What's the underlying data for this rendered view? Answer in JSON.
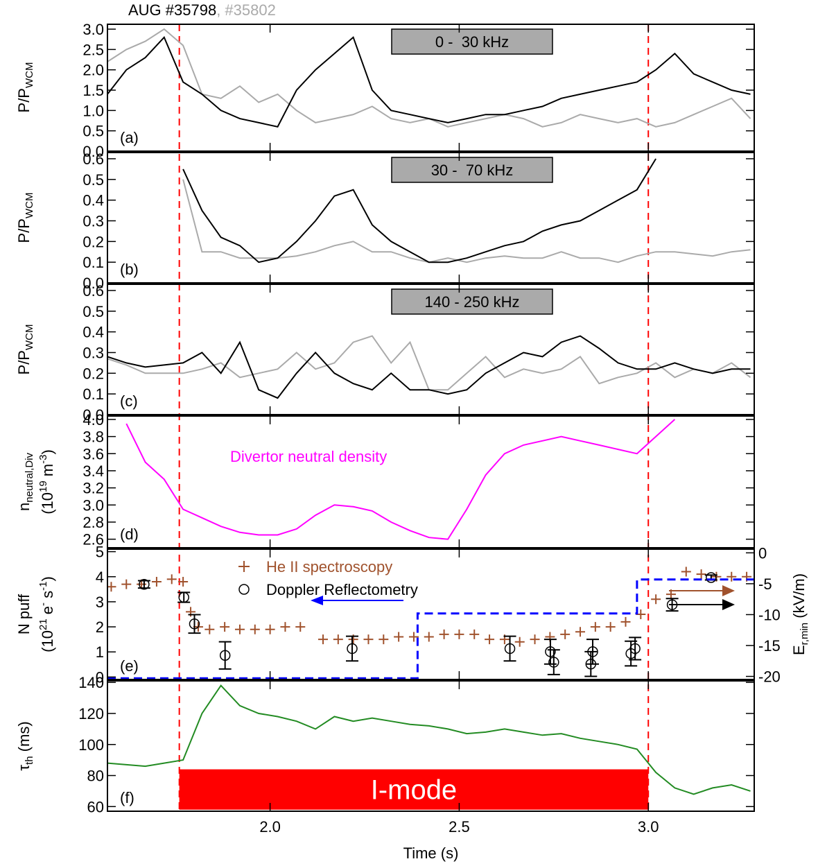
{
  "title": {
    "main": "AUG #35798",
    "second": ", #35802"
  },
  "vlines": {
    "x": [
      1.76,
      3.0
    ],
    "color": "#ff0000"
  },
  "chart_data": [
    {
      "type": "line",
      "panel": "(a)",
      "band": "0 -  30 kHz",
      "ylabel": {
        "main": "P/P",
        "sub": "WCM"
      },
      "xlim": [
        1.57,
        3.28
      ],
      "xticks": [
        {
          "value": 2,
          "label": "2.0"
        },
        2.5,
        {
          "value": 3,
          "label": "3.0"
        }
      ],
      "ylim": [
        0,
        3.12
      ],
      "yticks": [
        {
          "value": 0,
          "label": "0.0"
        },
        0.5,
        {
          "value": 1,
          "label": "1.0"
        },
        1.5,
        {
          "value": 2,
          "label": "2.0"
        },
        2.5,
        {
          "value": 3,
          "label": "3.0"
        }
      ],
      "x": [
        1.57,
        1.62,
        1.67,
        1.72,
        1.77,
        1.82,
        1.87,
        1.92,
        1.97,
        2.02,
        2.07,
        2.12,
        2.17,
        2.22,
        2.27,
        2.32,
        2.37,
        2.42,
        2.47,
        2.52,
        2.57,
        2.62,
        2.67,
        2.72,
        2.77,
        2.82,
        2.87,
        2.92,
        2.97,
        3.02,
        3.07,
        3.12,
        3.17,
        3.22,
        3.27
      ],
      "series": [
        {
          "color": "#aaaaaa",
          "values": [
            2.2,
            2.5,
            2.7,
            3.0,
            2.6,
            1.4,
            1.3,
            1.6,
            1.2,
            1.4,
            1.0,
            0.7,
            0.8,
            0.9,
            1.1,
            0.8,
            0.7,
            0.8,
            0.6,
            0.7,
            0.8,
            0.9,
            0.8,
            0.6,
            0.7,
            0.9,
            0.8,
            0.7,
            0.8,
            0.6,
            0.7,
            0.9,
            1.1,
            1.3,
            0.8
          ]
        },
        {
          "color": "#000000",
          "values": [
            1.4,
            2.0,
            2.3,
            2.8,
            1.7,
            1.4,
            1.0,
            0.8,
            0.7,
            0.6,
            1.5,
            2.0,
            2.4,
            2.8,
            1.5,
            1.0,
            0.9,
            0.8,
            0.7,
            0.8,
            0.9,
            0.9,
            1.0,
            1.1,
            1.3,
            1.4,
            1.5,
            1.6,
            1.7,
            2.0,
            2.4,
            1.9,
            1.7,
            1.5,
            1.4
          ]
        }
      ]
    },
    {
      "type": "line",
      "panel": "(b)",
      "band": "30 -  70 kHz",
      "ylabel": {
        "main": "P/P",
        "sub": "WCM"
      },
      "xlim": [
        1.57,
        3.28
      ],
      "xticks": [
        {
          "value": 2,
          "label": "2.0"
        },
        2.5,
        {
          "value": 3,
          "label": "3.0"
        }
      ],
      "ylim": [
        0,
        0.63
      ],
      "yticks": [
        {
          "value": 0,
          "label": "0.0"
        },
        0.1,
        0.2,
        0.3,
        0.4,
        0.5,
        0.6
      ],
      "x": [
        1.57,
        1.62,
        1.67,
        1.72,
        1.77,
        1.82,
        1.87,
        1.92,
        1.97,
        2.02,
        2.07,
        2.12,
        2.17,
        2.22,
        2.27,
        2.32,
        2.37,
        2.42,
        2.47,
        2.52,
        2.57,
        2.62,
        2.67,
        2.72,
        2.77,
        2.82,
        2.87,
        2.92,
        2.97,
        3.02,
        3.07,
        3.12,
        3.17,
        3.22,
        3.27
      ],
      "series": [
        {
          "color": "#aaaaaa",
          "values": [
            null,
            null,
            null,
            null,
            0.5,
            0.15,
            0.15,
            0.12,
            0.12,
            0.12,
            0.13,
            0.15,
            0.18,
            0.2,
            0.15,
            0.15,
            0.12,
            0.1,
            0.12,
            0.1,
            0.12,
            0.13,
            0.12,
            0.12,
            0.15,
            0.12,
            0.12,
            0.1,
            0.13,
            0.15,
            0.15,
            0.14,
            0.13,
            0.15,
            0.16
          ]
        },
        {
          "color": "#000000",
          "values": [
            null,
            null,
            null,
            null,
            0.55,
            0.35,
            0.22,
            0.18,
            0.1,
            0.12,
            0.2,
            0.3,
            0.42,
            0.45,
            0.28,
            0.2,
            0.15,
            0.1,
            0.1,
            0.12,
            0.15,
            0.18,
            0.2,
            0.25,
            0.28,
            0.3,
            0.35,
            0.4,
            0.45,
            0.6,
            null,
            null,
            null,
            null,
            null
          ]
        }
      ]
    },
    {
      "type": "line",
      "panel": "(c)",
      "band": "140 - 250 kHz",
      "ylabel": {
        "main": "P/P",
        "sub": "WCM"
      },
      "xlim": [
        1.57,
        3.28
      ],
      "xticks": [
        {
          "value": 2,
          "label": "2.0"
        },
        2.5,
        {
          "value": 3,
          "label": "3.0"
        }
      ],
      "ylim": [
        0,
        0.63
      ],
      "yticks": [
        {
          "value": 0,
          "label": "0.0"
        },
        0.1,
        0.2,
        0.3,
        0.4,
        0.5,
        0.6
      ],
      "x": [
        1.57,
        1.62,
        1.67,
        1.72,
        1.77,
        1.82,
        1.87,
        1.92,
        1.97,
        2.02,
        2.07,
        2.12,
        2.17,
        2.22,
        2.27,
        2.32,
        2.37,
        2.42,
        2.47,
        2.52,
        2.57,
        2.62,
        2.67,
        2.72,
        2.77,
        2.82,
        2.87,
        2.92,
        2.97,
        3.02,
        3.07,
        3.12,
        3.17,
        3.22,
        3.27
      ],
      "series": [
        {
          "color": "#aaaaaa",
          "values": [
            0.27,
            0.24,
            0.2,
            0.2,
            0.2,
            0.22,
            0.25,
            0.18,
            0.2,
            0.22,
            0.3,
            0.22,
            0.25,
            0.35,
            0.38,
            0.25,
            0.35,
            0.12,
            0.12,
            0.2,
            0.28,
            0.18,
            0.22,
            0.2,
            0.22,
            0.28,
            0.15,
            0.18,
            0.2,
            0.25,
            0.18,
            0.22,
            0.2,
            0.25,
            0.18
          ]
        },
        {
          "color": "#000000",
          "values": [
            0.28,
            0.25,
            0.23,
            0.24,
            0.25,
            0.3,
            0.2,
            0.35,
            0.12,
            0.08,
            0.2,
            0.3,
            0.2,
            0.15,
            0.12,
            0.2,
            0.12,
            0.12,
            0.1,
            0.12,
            0.2,
            0.25,
            0.3,
            0.28,
            0.35,
            0.38,
            0.32,
            0.25,
            0.22,
            0.22,
            0.25,
            0.22,
            0.2,
            0.22,
            0.22
          ]
        }
      ]
    },
    {
      "type": "line",
      "panel": "(d)",
      "annotation": "Divertor neutral density",
      "ylabel": {
        "main": "n",
        "sub": "neutral,Div",
        "u1": "(10",
        "u2": "19",
        "u3": " m",
        "u4": "-3",
        "u5": ")"
      },
      "xlim": [
        1.57,
        3.28
      ],
      "xticks": [
        {
          "value": 2,
          "label": "2.0"
        },
        2.5,
        {
          "value": 3,
          "label": "3.0"
        }
      ],
      "ylim": [
        2.5,
        4.04
      ],
      "yticks": [
        2.6,
        2.8,
        {
          "value": 3,
          "label": "3.0"
        },
        3.2,
        3.4,
        3.6,
        3.8,
        {
          "value": 4,
          "label": "4.0"
        }
      ],
      "x": [
        1.57,
        1.62,
        1.67,
        1.72,
        1.77,
        1.82,
        1.87,
        1.92,
        1.97,
        2.02,
        2.07,
        2.12,
        2.17,
        2.22,
        2.27,
        2.32,
        2.37,
        2.42,
        2.47,
        2.52,
        2.57,
        2.62,
        2.67,
        2.72,
        2.77,
        2.82,
        2.87,
        2.92,
        2.97,
        3.02,
        3.07,
        3.12,
        3.17,
        3.22,
        3.27
      ],
      "series": [
        {
          "color": "#ff00ff",
          "values": [
            null,
            3.95,
            3.5,
            3.3,
            2.95,
            2.85,
            2.75,
            2.68,
            2.65,
            2.65,
            2.72,
            2.88,
            3.0,
            2.98,
            2.93,
            2.8,
            2.7,
            2.62,
            2.6,
            2.95,
            3.35,
            3.6,
            3.7,
            3.75,
            3.8,
            3.75,
            3.7,
            3.65,
            3.6,
            3.8,
            4.0,
            null,
            null,
            null,
            null
          ]
        }
      ]
    },
    {
      "type": "scatter",
      "panel": "(e)",
      "ylabel": {
        "main": "N puff",
        "u1": "(10",
        "u2": "21",
        "u3": " e",
        "u4": "-",
        "u5": " s",
        "u6": "-1",
        "u7": ")"
      },
      "y2label": {
        "main": "E",
        "sub": "r,min",
        "unit": " (kV/m)"
      },
      "xlim": [
        1.57,
        3.28
      ],
      "xticks": [
        {
          "value": 2,
          "label": "2.0"
        },
        2.5,
        {
          "value": 3,
          "label": "3.0"
        }
      ],
      "ylim": [
        -0.1,
        5.1
      ],
      "yticks": [
        0,
        1,
        2,
        3,
        4,
        5
      ],
      "y2lim": [
        -20.5,
        0.6
      ],
      "y2ticks": [
        0,
        -5,
        -10,
        -15,
        -20
      ],
      "series": [
        {
          "name": "He II spectroscopy",
          "marker": "plus",
          "color": "#a0522d",
          "x": [
            1.58,
            1.62,
            1.66,
            1.7,
            1.74,
            1.77,
            1.79,
            1.81,
            1.84,
            1.88,
            1.92,
            1.96,
            2.0,
            2.04,
            2.08,
            2.14,
            2.18,
            2.22,
            2.26,
            2.3,
            2.34,
            2.38,
            2.42,
            2.46,
            2.5,
            2.54,
            2.58,
            2.62,
            2.66,
            2.7,
            2.74,
            2.78,
            2.82,
            2.86,
            2.9,
            2.94,
            2.98,
            3.02,
            3.06,
            3.1,
            3.14,
            3.18,
            3.22,
            3.26
          ],
          "values": [
            3.6,
            3.7,
            3.7,
            3.8,
            3.9,
            3.8,
            2.6,
            2.0,
            1.9,
            2.0,
            1.9,
            1.9,
            1.9,
            2.0,
            2.0,
            1.5,
            1.5,
            1.5,
            1.5,
            1.5,
            1.6,
            1.6,
            1.6,
            1.7,
            1.7,
            1.7,
            1.5,
            1.5,
            1.4,
            1.5,
            1.6,
            1.7,
            1.8,
            2.0,
            2.0,
            2.2,
            2.5,
            3.1,
            3.3,
            4.2,
            4.1,
            4.0,
            4.0,
            4.0
          ]
        },
        {
          "name": "Doppler Reflectometry",
          "marker": "circle",
          "color": "#000000",
          "axis": "y2",
          "x": [
            1.667,
            1.772,
            1.8,
            1.881,
            2.217,
            2.634,
            2.741,
            2.75,
            2.848,
            2.853,
            2.954,
            2.965,
            3.063,
            3.166
          ],
          "values": [
            -5.1,
            -7.2,
            -11.5,
            -16.6,
            -15.5,
            -15.5,
            -16.0,
            -17.7,
            -18.0,
            -16.0,
            -16.3,
            -15.5,
            -8.4,
            -4.0
          ],
          "errors": [
            0.6,
            0.8,
            1.5,
            2.2,
            2,
            2,
            2,
            2,
            2,
            2,
            2,
            1.8,
            1,
            0.4
          ]
        },
        {
          "color": "#0000ff",
          "axis": "y2",
          "dashed": true,
          "x": [
            1.57,
            2.39,
            2.39,
            2.97,
            2.97,
            3.28
          ],
          "values": [
            -20.3,
            -20.3,
            -9.8,
            -9.8,
            -4.3,
            -4.3
          ]
        }
      ]
    },
    {
      "type": "line",
      "panel": "(f)",
      "ylabel": {
        "main": "τ",
        "sub": "th",
        "unit": " (ms)"
      },
      "xlabel": "Time (s)",
      "xlim": [
        1.57,
        3.28
      ],
      "xticks": [
        {
          "value": 2,
          "label": "2.0"
        },
        2.5,
        {
          "value": 3,
          "label": "3.0"
        }
      ],
      "ylim": [
        57,
        141
      ],
      "yticks": [
        60,
        80,
        100,
        120,
        140
      ],
      "span": {
        "label": "I-mode",
        "x": [
          1.76,
          3.0
        ],
        "y": [
          58,
          84
        ],
        "color": "#ff0000"
      },
      "x": [
        1.57,
        1.62,
        1.67,
        1.72,
        1.77,
        1.82,
        1.87,
        1.92,
        1.97,
        2.02,
        2.07,
        2.12,
        2.17,
        2.22,
        2.27,
        2.32,
        2.37,
        2.42,
        2.47,
        2.52,
        2.57,
        2.62,
        2.67,
        2.72,
        2.77,
        2.82,
        2.87,
        2.92,
        2.97,
        3.02,
        3.07,
        3.12,
        3.17,
        3.22,
        3.27
      ],
      "series": [
        {
          "color": "#228b22",
          "values": [
            88,
            87,
            86,
            88,
            90,
            120,
            138,
            125,
            120,
            118,
            115,
            110,
            118,
            115,
            117,
            115,
            113,
            112,
            110,
            107,
            108,
            110,
            108,
            106,
            107,
            104,
            102,
            100,
            97,
            82,
            72,
            68,
            72,
            74,
            70
          ]
        }
      ]
    }
  ]
}
